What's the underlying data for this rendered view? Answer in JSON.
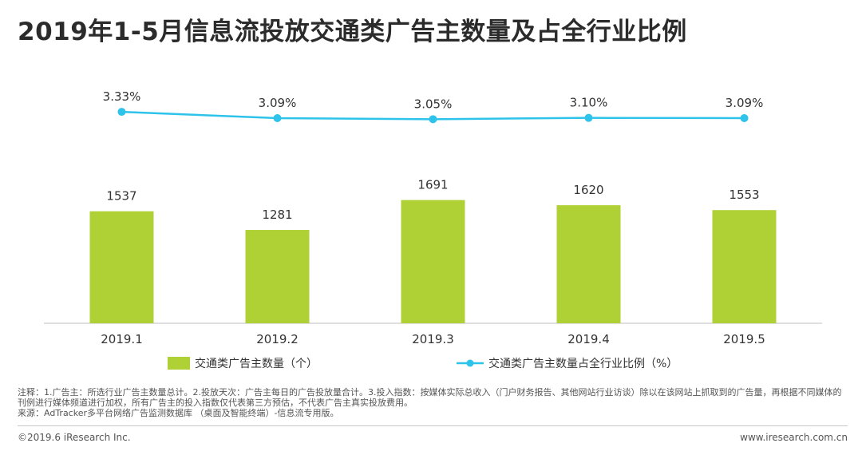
{
  "page": {
    "title": "2019年1-5月信息流投放交通类广告主数量及占全行业比例"
  },
  "colors": {
    "bar": "#afd135",
    "line": "#2ec3ea",
    "axis": "#bfbfbf",
    "text": "#333333"
  },
  "chart_data": {
    "type": "bar",
    "title": "2019年1-5月信息流投放交通类广告主数量及占全行业比例",
    "categories": [
      "2019.1",
      "2019.2",
      "2019.3",
      "2019.4",
      "2019.5"
    ],
    "series": [
      {
        "name": "交通类广告主数量（个）",
        "type": "bar",
        "values": [
          1537,
          1281,
          1691,
          1620,
          1553
        ],
        "labels": [
          "1537",
          "1281",
          "1691",
          "1620",
          "1553"
        ]
      },
      {
        "name": "交通类广告主数量占全行业比例（%）",
        "type": "line",
        "values": [
          3.33,
          3.09,
          3.05,
          3.1,
          3.09
        ],
        "labels": [
          "3.33%",
          "3.09%",
          "3.05%",
          "3.10%",
          "3.09%"
        ]
      }
    ],
    "ylim": [
      0,
      1800
    ]
  },
  "notes": {
    "line1": "注释：1.广告主：所选行业广告主数量总计。2.投放天次：广告主每日的广告投放量合计。3.投入指数：按媒体实际总收入（门户财务报告、其他网站行业访谈）除以在该网站上抓取到的广告量，再根据不同媒体的刊例进行媒体频道进行加权，所有广告主的投入指数仅代表第三方预估，不代表广告主真实投放费用。",
    "line2": "来源：AdTracker多平台网络广告监测数据库 （桌面及智能终端）-信息流专用版。"
  },
  "footer": {
    "copyright": "©2019.6 iResearch Inc.",
    "website": "www.iresearch.com.cn"
  }
}
